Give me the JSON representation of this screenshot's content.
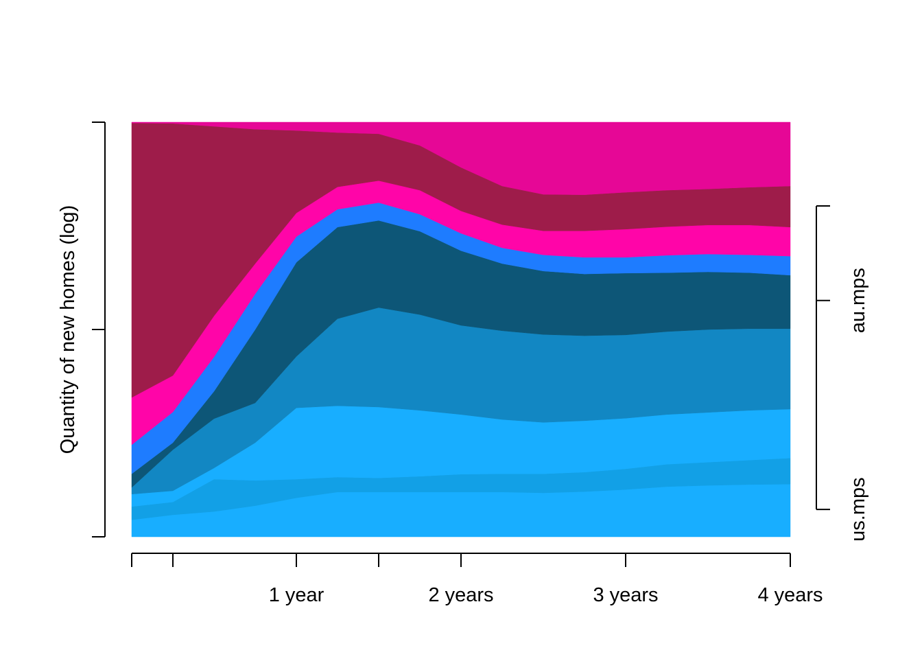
{
  "chart_data": {
    "type": "area",
    "stacked": true,
    "title": "",
    "xlabel": "",
    "ylabel": "Quantity of new homes (log)",
    "x": [
      0,
      0.25,
      0.5,
      0.75,
      1,
      1.25,
      1.5,
      1.75,
      2,
      2.25,
      2.5,
      2.75,
      3,
      3.25,
      3.5,
      3.75,
      4
    ],
    "xlim": [
      0,
      4
    ],
    "ylim": [
      0,
      100
    ],
    "x_ticks": [
      0,
      0.25,
      1,
      1.5,
      2,
      3,
      4
    ],
    "x_tick_labels": [
      {
        "value": 1,
        "label": "1 year"
      },
      {
        "value": 2,
        "label": "2 years"
      },
      {
        "value": 3,
        "label": "3 years"
      },
      {
        "value": 4,
        "label": "4 years"
      }
    ],
    "y_ticks": [
      0,
      50,
      100
    ],
    "right_axis": {
      "ticks": [
        6.6,
        57.0,
        79.8
      ],
      "labels": [
        {
          "value": 57.0,
          "label": "au.mps"
        },
        {
          "value": 6.6,
          "label": "us.mps"
        }
      ]
    },
    "grid": false,
    "series_cumulative_top": [
      {
        "color": "#18aeff",
        "values": [
          4.1,
          5.3,
          6.1,
          7.5,
          9.4,
          10.8,
          10.8,
          10.8,
          10.8,
          10.8,
          10.6,
          10.9,
          11.4,
          12.1,
          12.4,
          12.6,
          12.7
        ]
      },
      {
        "color": "#12a0e6",
        "values": [
          7.3,
          8.4,
          13.9,
          13.6,
          13.9,
          14.4,
          14.2,
          14.6,
          15.1,
          15.2,
          15.2,
          15.6,
          16.4,
          17.5,
          18.0,
          18.5,
          19.0
        ]
      },
      {
        "color": "#18aeff",
        "values": [
          10.3,
          11.1,
          16.6,
          22.7,
          31.1,
          31.6,
          31.3,
          30.5,
          29.5,
          28.3,
          27.6,
          28.0,
          28.6,
          29.5,
          30.0,
          30.5,
          30.8
        ]
      },
      {
        "color": "#1287c3",
        "values": [
          11.9,
          21.0,
          28.5,
          32.3,
          43.5,
          52.6,
          55.3,
          53.6,
          51.0,
          49.7,
          48.8,
          48.5,
          48.7,
          49.5,
          50.0,
          50.2,
          50.2
        ]
      },
      {
        "color": "#0d5677",
        "values": [
          15.2,
          22.7,
          35.1,
          50.0,
          66.2,
          74.7,
          76.3,
          73.7,
          69.0,
          65.9,
          64.1,
          63.4,
          63.6,
          63.7,
          63.9,
          63.7,
          63.1
        ]
      },
      {
        "color": "#1e7cff",
        "values": [
          22.2,
          30.1,
          43.4,
          58.6,
          72.4,
          79.0,
          80.6,
          77.8,
          73.2,
          69.7,
          68.0,
          67.4,
          67.4,
          67.9,
          68.2,
          68.0,
          67.7
        ]
      },
      {
        "color": "#ff05a8",
        "values": [
          33.6,
          38.9,
          53.3,
          65.9,
          78.1,
          84.4,
          85.9,
          83.6,
          78.6,
          75.3,
          73.8,
          73.8,
          74.2,
          74.8,
          75.2,
          75.2,
          74.7
        ]
      },
      {
        "color": "#9e1c4a",
        "values": [
          99.8,
          99.7,
          99.0,
          98.3,
          98.0,
          97.5,
          97.2,
          94.4,
          89.1,
          84.6,
          82.6,
          82.5,
          83.1,
          83.6,
          83.9,
          84.3,
          84.6
        ]
      },
      {
        "color": "#e60796",
        "values": [
          100,
          100,
          100,
          100,
          100,
          100,
          100,
          100,
          100,
          100,
          100,
          100,
          100,
          100,
          100,
          100,
          100
        ]
      }
    ]
  }
}
